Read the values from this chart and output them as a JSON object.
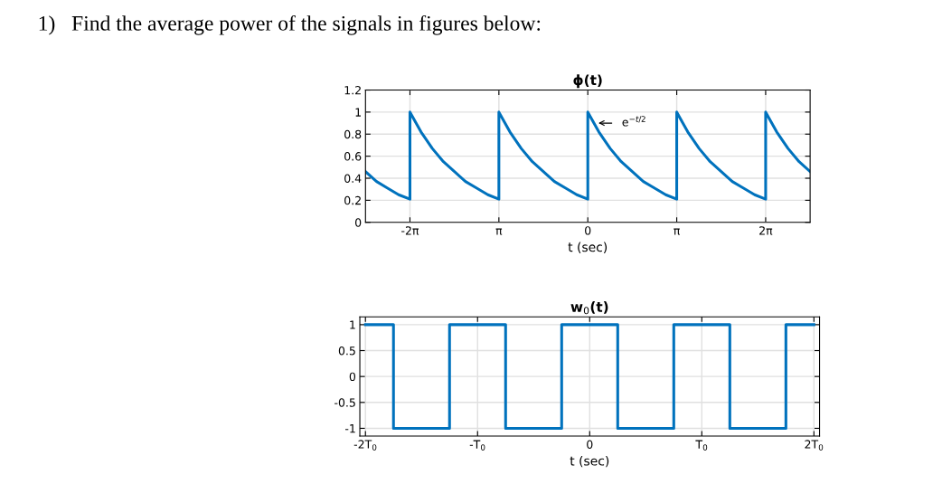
{
  "chart_data": [
    {
      "type": "line",
      "title": "ϕ(t)",
      "xlabel": "t (sec)",
      "annotations": [
        "1)   Find the average power of the signals in figures below:",
        {
          "text": "e$^{−t/2}$",
          "x": 0.2,
          "y": 0.9
        }
      ],
      "xlim": [
        -7.85,
        7.85
      ],
      "ylim": [
        0,
        1.2
      ],
      "xticks": [
        {
          "value": -6.28,
          "label": "-2π"
        },
        {
          "value": -3.14,
          "label": "π"
        },
        {
          "value": 0,
          "label": "0"
        },
        {
          "value": 3.14,
          "label": "π"
        },
        {
          "value": 6.28,
          "label": "2π"
        }
      ],
      "yticks": [
        0,
        0.2,
        0.4,
        0.6,
        0.8,
        1,
        1.2
      ],
      "grid": true,
      "series": [
        {
          "color": "#0072bd",
          "x": [
            -7.85,
            -7.46,
            -7.07,
            -6.68,
            -6.28,
            -6.28,
            -5.89,
            -5.49,
            -5.1,
            -4.71,
            -4.32,
            -3.92,
            -3.53,
            -3.14,
            -3.14,
            -2.75,
            -2.35,
            -1.96,
            -1.57,
            -1.18,
            -0.78,
            -0.39,
            0,
            0,
            0.39,
            0.79,
            1.18,
            1.57,
            1.96,
            2.36,
            2.75,
            3.14,
            3.14,
            3.53,
            3.93,
            4.32,
            4.71,
            5.1,
            5.5,
            5.89,
            6.28,
            6.28,
            6.67,
            7.07,
            7.46,
            7.85
          ],
          "values": [
            0.46,
            0.37,
            0.31,
            0.25,
            0.21,
            1,
            0.82,
            0.67,
            0.55,
            0.46,
            0.37,
            0.31,
            0.25,
            0.21,
            1,
            0.82,
            0.67,
            0.55,
            0.46,
            0.37,
            0.31,
            0.25,
            0.21,
            1,
            0.82,
            0.67,
            0.55,
            0.46,
            0.37,
            0.31,
            0.25,
            0.21,
            1,
            0.82,
            0.67,
            0.55,
            0.46,
            0.37,
            0.31,
            0.25,
            0.21,
            1,
            0.82,
            0.67,
            0.55,
            0.46
          ]
        }
      ]
    },
    {
      "type": "step",
      "title": "w$_{0}$(t)",
      "xlabel": "t (sec)",
      "categories": [
        "-2T$_{0}$",
        null,
        null,
        null,
        "-T$_{0}$",
        null,
        null,
        null,
        "0",
        null,
        null,
        null,
        "T$_{0}$",
        null,
        null,
        null,
        "2T$_{0}$"
      ],
      "ylim": [
        -1.15,
        1.15
      ],
      "yticks": [
        -1,
        -0.5,
        0,
        0.5,
        1
      ],
      "grid": true,
      "series": [
        {
          "color": "#0072bd",
          "values": [
            1,
            -1,
            -1,
            1,
            1,
            -1,
            -1,
            1,
            1,
            -1,
            -1,
            1,
            1,
            -1,
            -1,
            1,
            1
          ]
        }
      ]
    }
  ]
}
